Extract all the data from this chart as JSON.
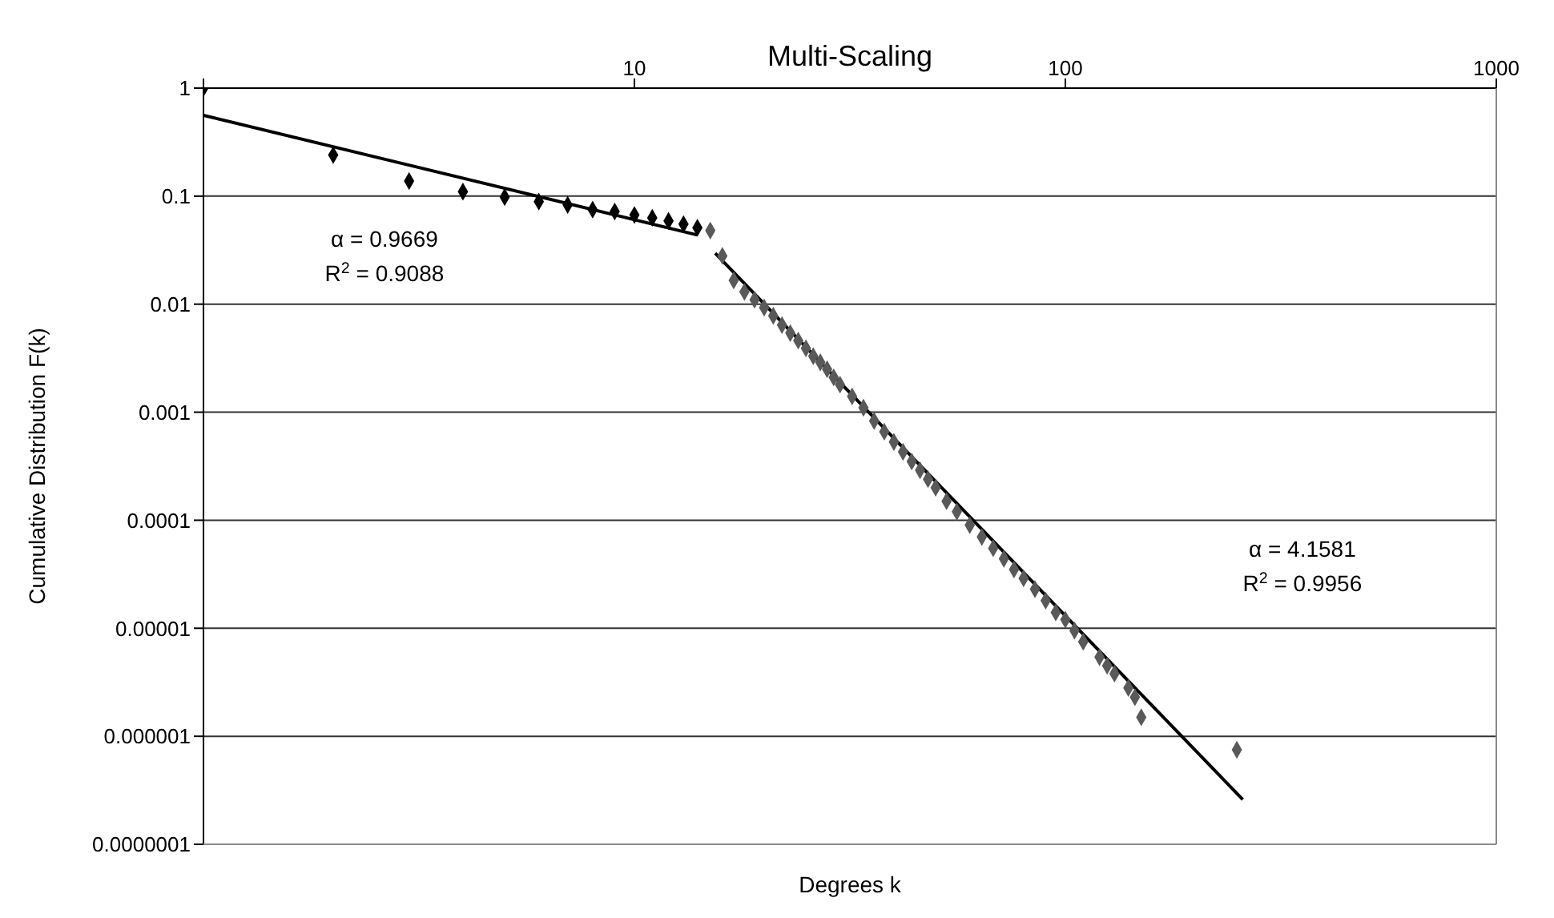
{
  "chart_data": {
    "type": "scatter",
    "title": "Multi-Scaling",
    "xlabel": "Degrees k",
    "ylabel": "Cumulative Distribution F(k)",
    "log": "xy",
    "grid": "y",
    "legend": false,
    "xlim": [
      1,
      1000
    ],
    "xticks": [
      {
        "value": 1,
        "label": null
      },
      10,
      100,
      1000
    ],
    "ylim": [
      1e-07,
      1
    ],
    "yticks": [
      {
        "value": 1e-07,
        "label": "0.0000001"
      },
      {
        "value": 1e-06,
        "label": "0.000001"
      },
      {
        "value": 1e-05,
        "label": "0.00001"
      },
      0.0001,
      0.001,
      0.01,
      0.1,
      1
    ],
    "series": [
      {
        "marker": "diamond",
        "color": "#000000",
        "x": [
          1,
          2,
          3,
          4,
          5,
          6,
          7,
          8,
          9,
          10,
          11,
          12,
          13,
          14
        ],
        "values": [
          1,
          0.24,
          0.138,
          0.11,
          0.098,
          0.089,
          0.083,
          0.075,
          0.072,
          0.067,
          0.063,
          0.059,
          0.055,
          0.051
        ]
      },
      {
        "marker": "diamond",
        "color": "#595959",
        "x": [
          15,
          16,
          17,
          18,
          19,
          20,
          21,
          22,
          23,
          24,
          25,
          26,
          27,
          28,
          29,
          30,
          32,
          34,
          36,
          38,
          40,
          42,
          44,
          46,
          48,
          50,
          53,
          56,
          60,
          64,
          68,
          72,
          76,
          80,
          85,
          90,
          95,
          100,
          105,
          110,
          120,
          125,
          130,
          140,
          145,
          150,
          250
        ],
        "values": [
          0.048,
          0.028,
          0.0166,
          0.013,
          0.011,
          0.0093,
          0.0078,
          0.0064,
          0.0054,
          0.0046,
          0.0039,
          0.0033,
          0.0029,
          0.0025,
          0.0021,
          0.0018,
          0.0014,
          0.0011,
          0.00083,
          0.00066,
          0.00053,
          0.00043,
          0.00035,
          0.00029,
          0.00024,
          0.0002,
          0.00015,
          0.00012,
          9e-05,
          7e-05,
          5.5e-05,
          4.4e-05,
          3.5e-05,
          2.9e-05,
          2.3e-05,
          1.8e-05,
          1.4e-05,
          1.2e-05,
          9.5e-06,
          7.5e-06,
          5.4e-06,
          4.5e-06,
          3.8e-06,
          2.8e-06,
          2.3e-06,
          1.5e-06,
          7.5e-07
        ]
      },
      {
        "type": "line",
        "color": "#000000",
        "x": [
          1,
          14
        ],
        "values": [
          0.56,
          0.0437
        ]
      },
      {
        "type": "line",
        "color": "#000000",
        "x": [
          15.4,
          258
        ],
        "values": [
          0.0296,
          2.6e-07
        ]
      }
    ],
    "annotations": [
      "α = 0.9669",
      "R$^{2}$ = 0.9088",
      "α = 4.1581",
      "R$^{2}$ = 0.9956"
    ]
  }
}
